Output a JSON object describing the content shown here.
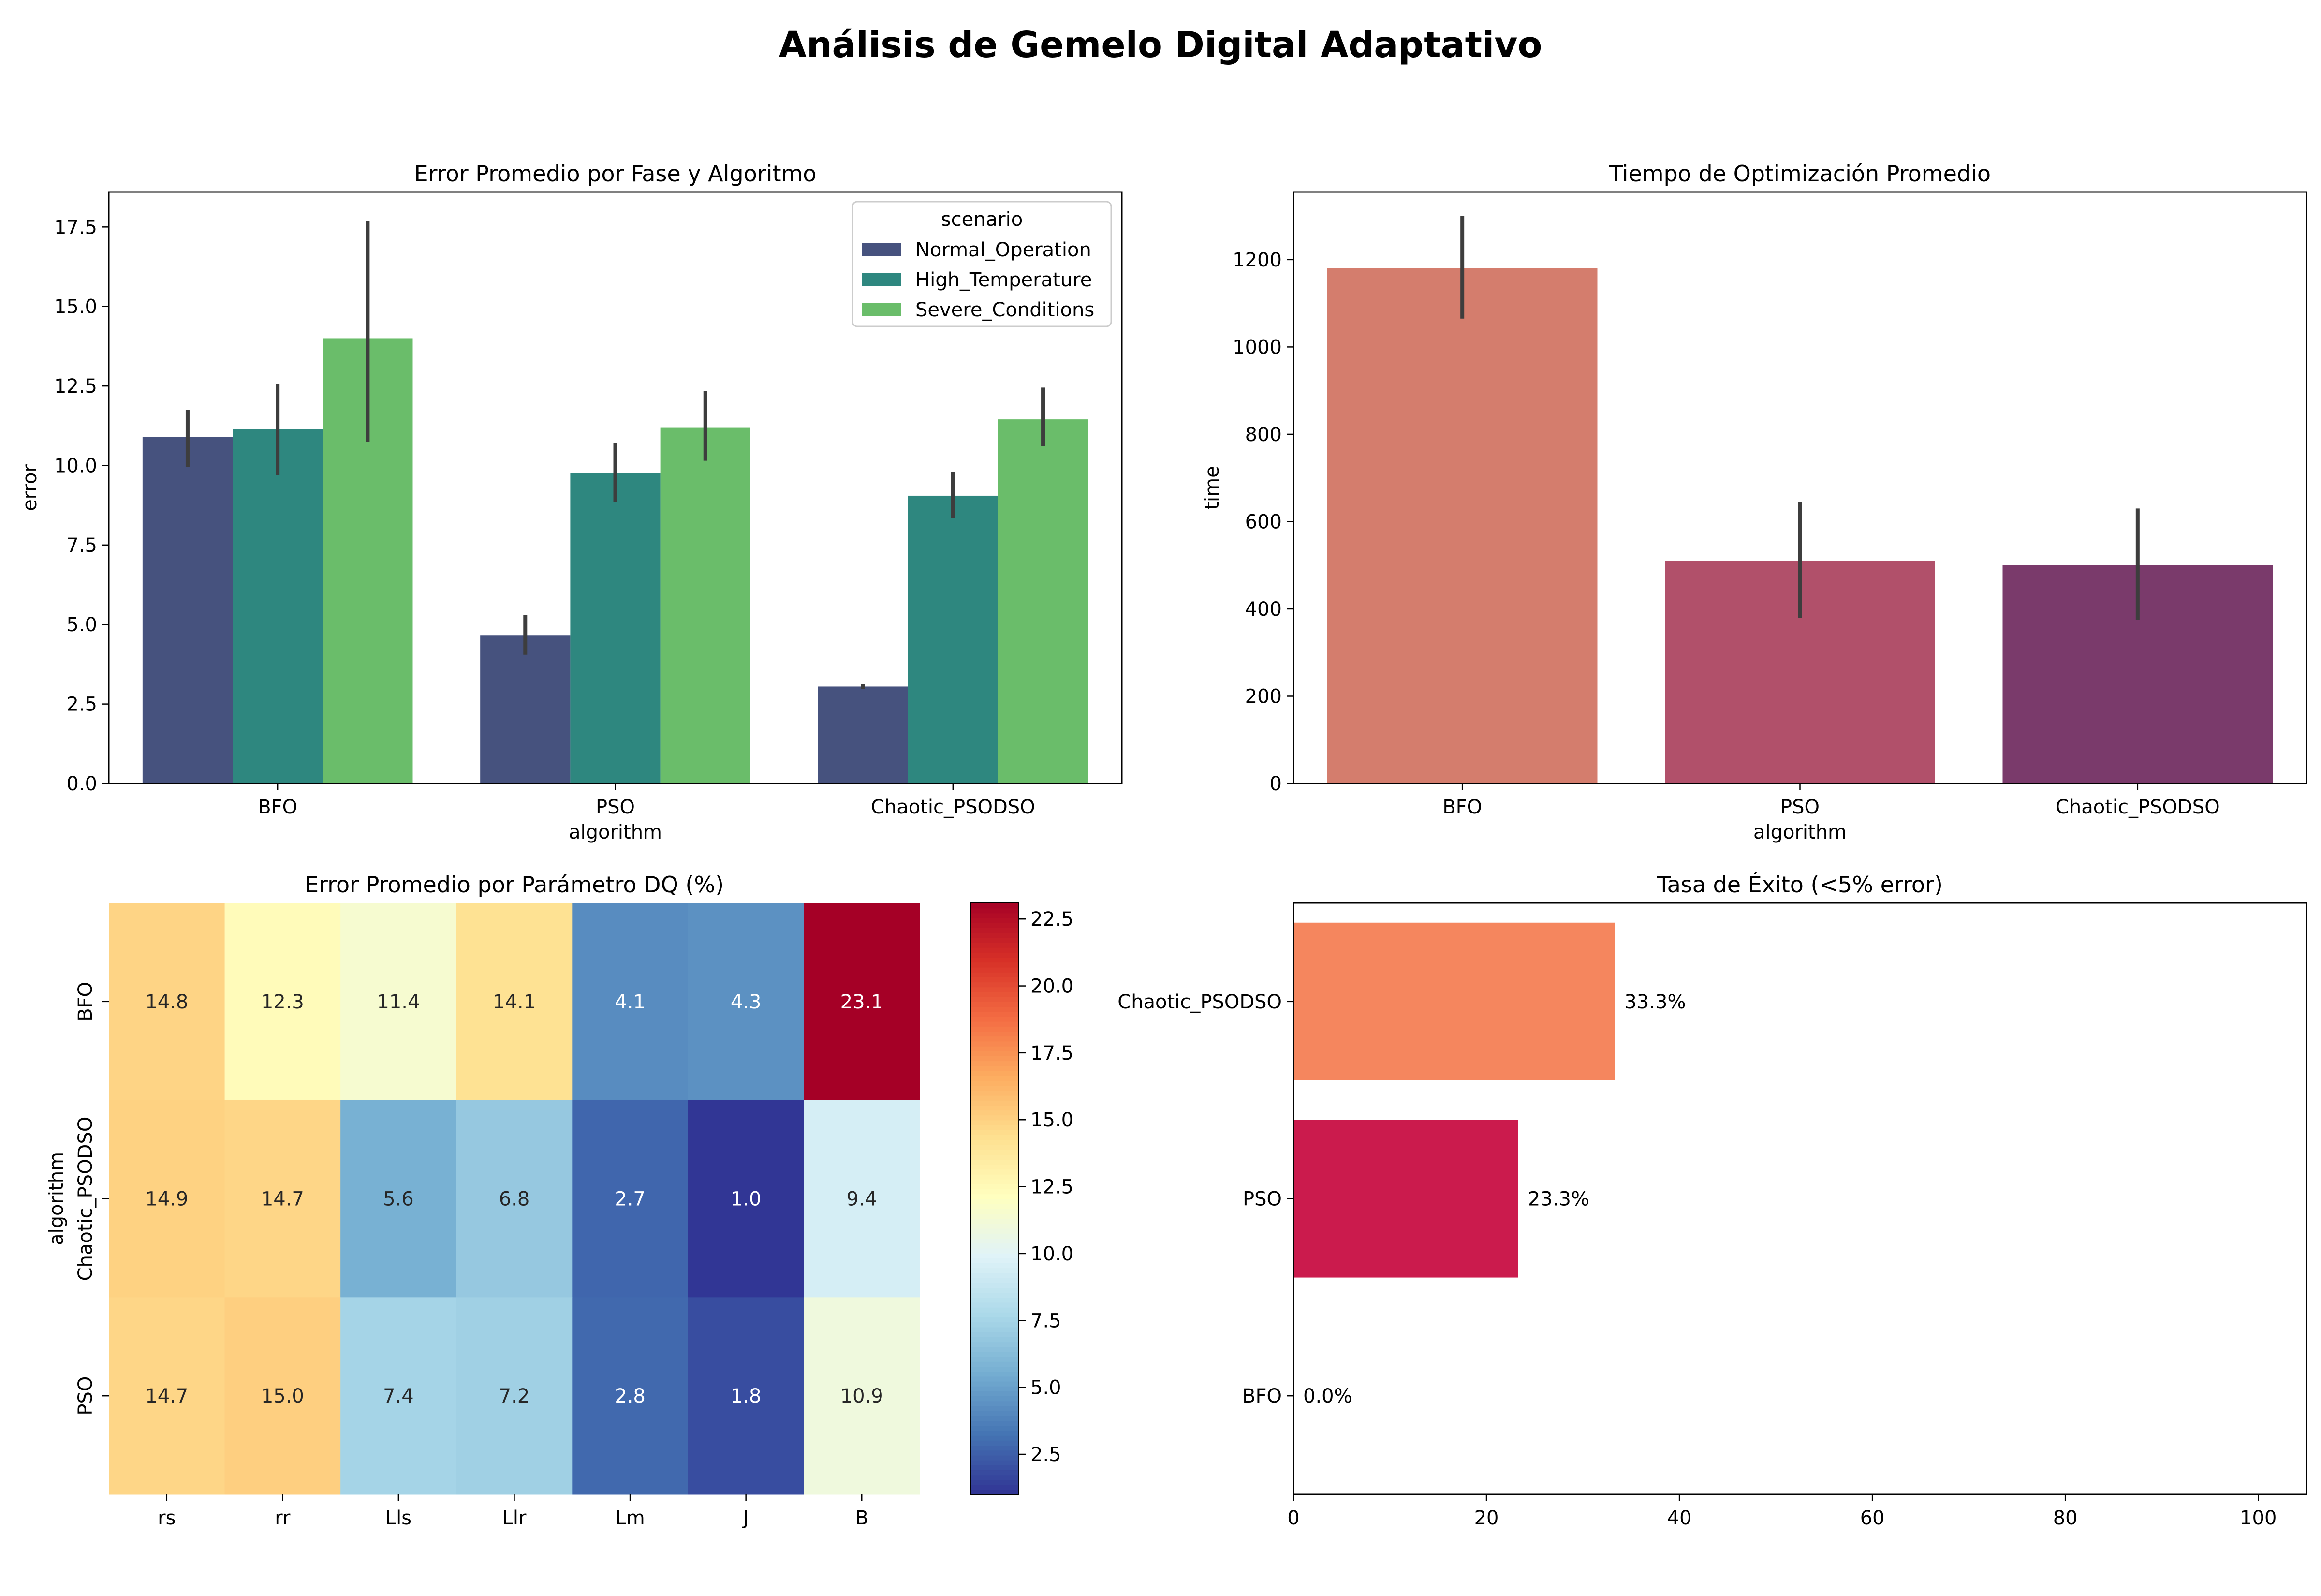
{
  "figure": {
    "title": "Análisis de Gemelo Digital Adaptativo"
  },
  "chart_data": [
    {
      "type": "bar",
      "title": "Error Promedio por Fase y Algoritmo",
      "xlabel": "algorithm",
      "ylabel": "error",
      "categories": [
        "BFO",
        "PSO",
        "Chaotic_PSODSO"
      ],
      "ylim": [
        0,
        18.6
      ],
      "yticks": [
        "0.0",
        "2.5",
        "5.0",
        "7.5",
        "10.0",
        "12.5",
        "15.0",
        "17.5"
      ],
      "legend_title": "scenario",
      "legend_position": "upper right",
      "series": [
        {
          "name": "Normal_Operation",
          "color": "#46527e",
          "values": [
            10.9,
            4.65,
            3.05
          ],
          "err_low": [
            9.95,
            4.05,
            2.98
          ],
          "err_high": [
            11.75,
            5.3,
            3.12
          ]
        },
        {
          "name": "High_Temperature",
          "color": "#2e877f",
          "values": [
            11.15,
            9.75,
            9.05
          ],
          "err_low": [
            9.7,
            8.85,
            8.35
          ],
          "err_high": [
            12.55,
            10.7,
            9.8
          ]
        },
        {
          "name": "Severe_Conditions",
          "color": "#6abd6a",
          "values": [
            14.0,
            11.2,
            11.45
          ],
          "err_low": [
            10.75,
            10.15,
            10.6
          ],
          "err_high": [
            17.7,
            12.35,
            12.45
          ]
        }
      ]
    },
    {
      "type": "bar",
      "title": "Tiempo de Optimización Promedio",
      "xlabel": "algorithm",
      "ylabel": "time",
      "categories": [
        "BFO",
        "PSO",
        "Chaotic_PSODSO"
      ],
      "ylim": [
        0,
        1355
      ],
      "yticks": [
        "0",
        "200",
        "400",
        "600",
        "800",
        "1000",
        "1200"
      ],
      "colors": [
        "#d47d6d",
        "#b1506a",
        "#7a3a6b"
      ],
      "values": [
        1180,
        510,
        500
      ],
      "err_low": [
        1065,
        380,
        375
      ],
      "err_high": [
        1300,
        645,
        630
      ]
    },
    {
      "type": "heatmap",
      "title": "Error Promedio por Parámetro DQ (%)",
      "ylabel": "algorithm",
      "columns": [
        "rs",
        "rr",
        "Lls",
        "Llr",
        "Lm",
        "J",
        "B"
      ],
      "rows": [
        "BFO",
        "Chaotic_PSODSO",
        "PSO"
      ],
      "cells": [
        [
          "14.8",
          "12.3",
          "11.4",
          "14.1",
          "4.1",
          "4.3",
          "23.1"
        ],
        [
          "14.9",
          "14.7",
          "5.6",
          "6.8",
          "2.7",
          "1.0",
          "9.4"
        ],
        [
          "14.7",
          "15.0",
          "7.4",
          "7.2",
          "2.8",
          "1.8",
          "10.9"
        ]
      ],
      "colormap": "RdYlBu_r",
      "vmin": 1.0,
      "vmax": 23.1,
      "colorbar_ticks": [
        "2.5",
        "5.0",
        "7.5",
        "10.0",
        "12.5",
        "15.0",
        "17.5",
        "20.0",
        "22.5"
      ]
    },
    {
      "type": "bar",
      "orientation": "horizontal",
      "title": "Tasa de Éxito (<5% error)",
      "categories": [
        "Chaotic_PSODSO",
        "PSO",
        "BFO"
      ],
      "values": [
        33.3,
        23.3,
        0.0
      ],
      "labels": [
        "33.3%",
        "23.3%",
        "0.0%"
      ],
      "colors": [
        "#f5865e",
        "#cb1b4d",
        "#5a1e4d"
      ],
      "xlim": [
        0,
        105
      ],
      "xticks": [
        "0",
        "20",
        "40",
        "60",
        "80",
        "100"
      ]
    }
  ]
}
